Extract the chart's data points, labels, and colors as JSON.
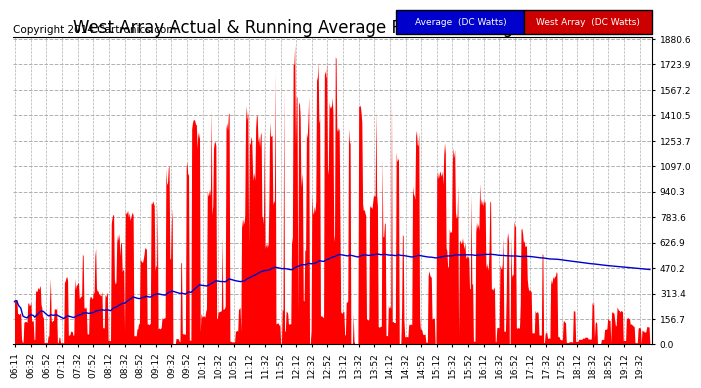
{
  "title": "West Array Actual & Running Average Power Tue Aug 19 19:45",
  "copyright": "Copyright 2014 Cartronics.com",
  "ylabel_right": [
    "0.0",
    "156.7",
    "313.4",
    "470.2",
    "626.9",
    "783.6",
    "940.3",
    "1097.0",
    "1253.7",
    "1410.5",
    "1567.2",
    "1723.9",
    "1880.6"
  ],
  "ymax": 1880.6,
  "ymin": 0.0,
  "bg_color": "#ffffff",
  "plot_bg_color": "#ffffff",
  "grid_color": "#b0b0b0",
  "bar_color": "#ff0000",
  "avg_line_color": "#0000cc",
  "legend_avg_bg": "#0000cc",
  "legend_west_bg": "#cc0000",
  "legend_avg_text": "Average  (DC Watts)",
  "legend_west_text": "West Array  (DC Watts)",
  "title_fontsize": 12,
  "copyright_fontsize": 7.5,
  "tick_fontsize": 6.5,
  "xtick_labels": [
    "06:11",
    "06:32",
    "06:52",
    "07:12",
    "07:32",
    "07:52",
    "08:12",
    "08:32",
    "08:52",
    "09:12",
    "09:32",
    "09:52",
    "10:12",
    "10:32",
    "10:52",
    "11:12",
    "11:32",
    "11:52",
    "12:12",
    "12:32",
    "12:52",
    "13:12",
    "13:32",
    "13:52",
    "14:12",
    "14:32",
    "14:52",
    "15:12",
    "15:32",
    "15:52",
    "16:12",
    "16:32",
    "16:52",
    "17:12",
    "17:32",
    "17:52",
    "18:12",
    "18:32",
    "18:52",
    "19:12",
    "19:32"
  ]
}
